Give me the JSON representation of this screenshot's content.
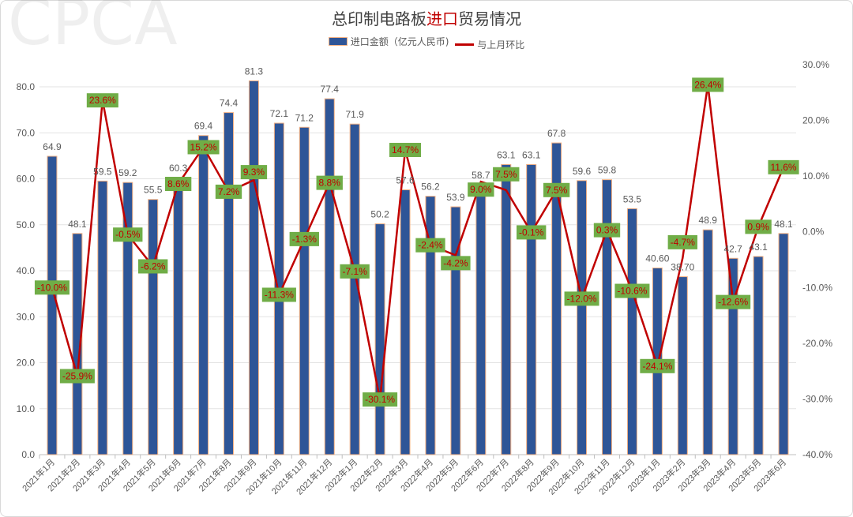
{
  "chart_data": {
    "type": "bar+line",
    "title_parts": [
      "总印制电路板",
      "进口",
      "贸易情况"
    ],
    "title_colors": [
      "#404040",
      "#c00000",
      "#404040"
    ],
    "watermark": "CPCA",
    "categories": [
      "2021年1月",
      "2021年2月",
      "2021年3月",
      "2021年4月",
      "2021年5月",
      "2021年6月",
      "2021年7月",
      "2021年8月",
      "2021年9月",
      "2021年10月",
      "2021年11月",
      "2021年12月",
      "2022年1月",
      "2022年2月",
      "2022年3月",
      "2022年4月",
      "2022年5月",
      "2022年6月",
      "2022年7月",
      "2022年8月",
      "2022年9月",
      "2022年10月",
      "2022年11月",
      "2022年12月",
      "2023年1月",
      "2023年2月",
      "2023年3月",
      "2023年4月",
      "2023年5月",
      "2023年6月"
    ],
    "series": [
      {
        "name": "进口金额（亿元人民币)",
        "type": "bar",
        "axis": "left",
        "color": "#2e5597",
        "values": [
          64.9,
          48.1,
          59.5,
          59.2,
          55.5,
          60.3,
          69.4,
          74.4,
          81.3,
          72.1,
          71.2,
          77.4,
          71.9,
          50.2,
          57.6,
          56.2,
          53.9,
          58.7,
          63.1,
          63.1,
          67.8,
          59.6,
          59.8,
          53.5,
          40.6,
          38.7,
          48.9,
          42.7,
          43.1,
          48.1
        ],
        "labels": [
          "64.9",
          "48.1",
          "59.5",
          "59.2",
          "55.5",
          "60.3",
          "69.4",
          "74.4",
          "81.3",
          "72.1",
          "71.2",
          "77.4",
          "71.9",
          "50.2",
          "57.6",
          "56.2",
          "53.9",
          "58.7",
          "63.1",
          "63.1",
          "67.8",
          "59.6",
          "59.8",
          "53.5",
          "40.60",
          "38.70",
          "48.9",
          "42.7",
          "43.1",
          "48.1"
        ]
      },
      {
        "name": "与上月环比",
        "type": "line",
        "axis": "right",
        "color": "#c00000",
        "label_bg": "#70ad47",
        "values": [
          -10.0,
          -25.9,
          23.6,
          -0.5,
          -6.2,
          8.6,
          15.2,
          7.2,
          9.3,
          -11.3,
          -1.3,
          8.8,
          -7.1,
          -30.1,
          14.7,
          -2.4,
          -4.2,
          9.0,
          7.5,
          -0.1,
          7.5,
          -12.0,
          0.3,
          -10.6,
          -24.1,
          -4.7,
          26.4,
          -12.6,
          0.9,
          11.6
        ]
      }
    ],
    "y_left": {
      "min": 0,
      "max": 80,
      "ticks": [
        "0.0",
        "10.0",
        "20.0",
        "30.0",
        "40.0",
        "50.0",
        "60.0",
        "70.0",
        "80.0"
      ]
    },
    "y_right": {
      "min": -40,
      "max": 30,
      "ticks": [
        "-40.0%",
        "-30.0%",
        "-20.0%",
        "-10.0%",
        "0.0%",
        "10.0%",
        "20.0%",
        "30.0%"
      ]
    },
    "grid": true,
    "legend": "top"
  }
}
